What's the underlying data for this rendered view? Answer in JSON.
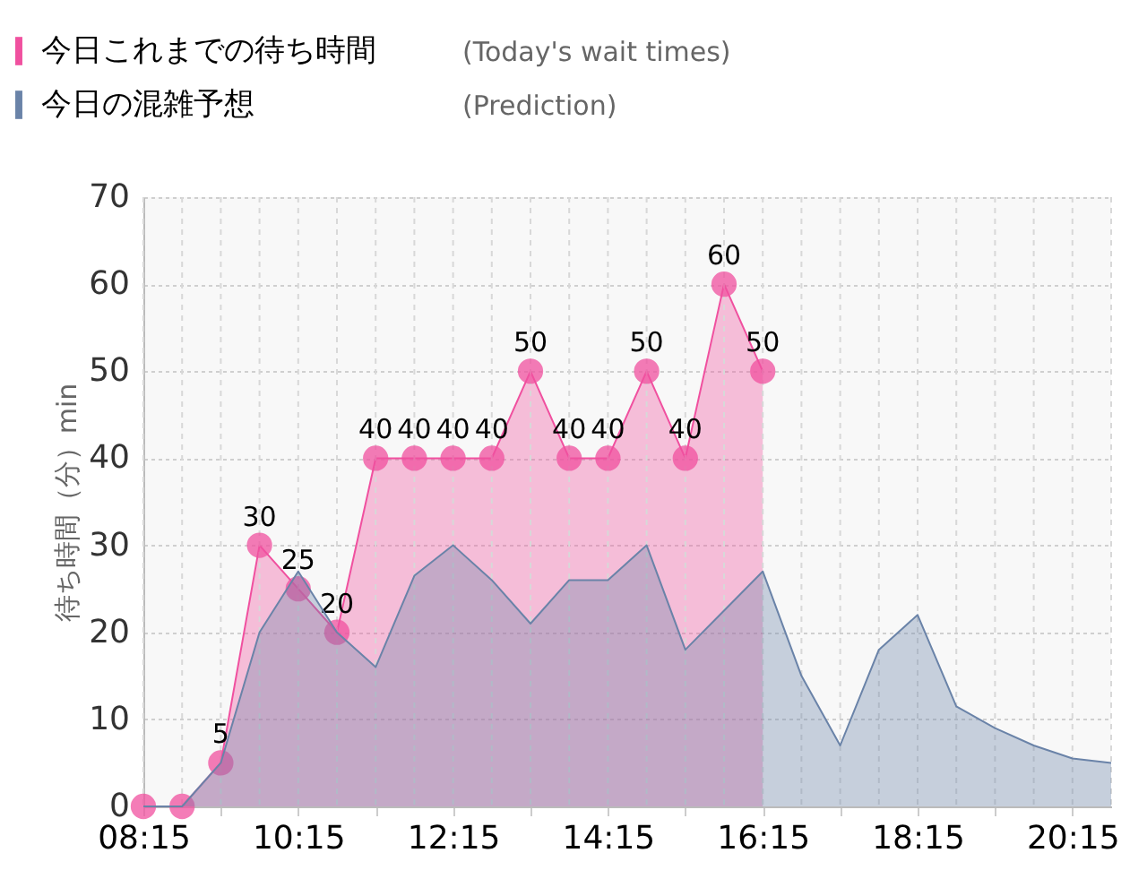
{
  "chart_data": {
    "type": "area",
    "ylabel": "待ち時間（分）min",
    "annotations": [
      "(Today's wait times)",
      "(Prediction)"
    ],
    "xlim": [
      8.25,
      20.75
    ],
    "ylim": [
      0,
      70
    ],
    "yticks": [
      0,
      10,
      20,
      30,
      40,
      50,
      60,
      70
    ],
    "xticks": [
      {
        "value": 8.25,
        "label": "08:15"
      },
      {
        "value": 8.75,
        "label": null
      },
      {
        "value": 9.25,
        "label": null
      },
      {
        "value": 9.75,
        "label": null
      },
      {
        "value": 10.25,
        "label": "10:15"
      },
      {
        "value": 10.75,
        "label": null
      },
      {
        "value": 11.25,
        "label": null
      },
      {
        "value": 11.75,
        "label": null
      },
      {
        "value": 12.25,
        "label": "12:15"
      },
      {
        "value": 12.75,
        "label": null
      },
      {
        "value": 13.25,
        "label": null
      },
      {
        "value": 13.75,
        "label": null
      },
      {
        "value": 14.25,
        "label": "14:15"
      },
      {
        "value": 14.75,
        "label": null
      },
      {
        "value": 15.25,
        "label": null
      },
      {
        "value": 15.75,
        "label": null
      },
      {
        "value": 16.25,
        "label": "16:15"
      },
      {
        "value": 16.75,
        "label": null
      },
      {
        "value": 17.25,
        "label": null
      },
      {
        "value": 17.75,
        "label": null
      },
      {
        "value": 18.25,
        "label": "18:15"
      },
      {
        "value": 18.75,
        "label": null
      },
      {
        "value": 19.25,
        "label": null
      },
      {
        "value": 19.75,
        "label": null
      },
      {
        "value": 20.25,
        "label": "20:15"
      },
      {
        "value": 20.75,
        "label": null
      }
    ],
    "grid": true,
    "legend": "top left",
    "series": [
      {
        "name": "今日これまでの待ち時間",
        "color": "#f0509f",
        "marker": "circle",
        "x": [
          8.25,
          8.75,
          9.25,
          9.75,
          10.25,
          10.75,
          11.25,
          11.75,
          12.25,
          12.75,
          13.25,
          13.75,
          14.25,
          14.75,
          15.25,
          15.75,
          16.25
        ],
        "values": [
          0,
          0,
          5,
          30,
          25,
          20,
          40,
          40,
          40,
          40,
          50,
          40,
          40,
          50,
          40,
          60,
          50
        ],
        "value_labels": [
          null,
          null,
          "5",
          "30",
          "25",
          "20",
          "40",
          "40",
          "40",
          "40",
          "50",
          "40",
          "40",
          "50",
          "40",
          "60",
          "50"
        ]
      },
      {
        "name": "今日の混雑予想",
        "color": "#6a83a8",
        "x": [
          8.25,
          8.75,
          9.25,
          9.75,
          10.25,
          10.75,
          11.25,
          11.75,
          12.25,
          12.75,
          13.25,
          13.75,
          14.25,
          14.75,
          15.25,
          15.75,
          16.25,
          16.75,
          17.25,
          17.75,
          18.25,
          18.75,
          19.25,
          19.75,
          20.25,
          20.75
        ],
        "values": [
          0,
          0,
          5,
          20,
          27,
          20,
          16,
          26.5,
          30,
          26,
          21,
          26,
          26,
          30,
          18,
          22.5,
          27,
          15,
          7,
          18,
          22,
          11.5,
          9,
          7,
          5.5,
          5
        ]
      }
    ]
  }
}
